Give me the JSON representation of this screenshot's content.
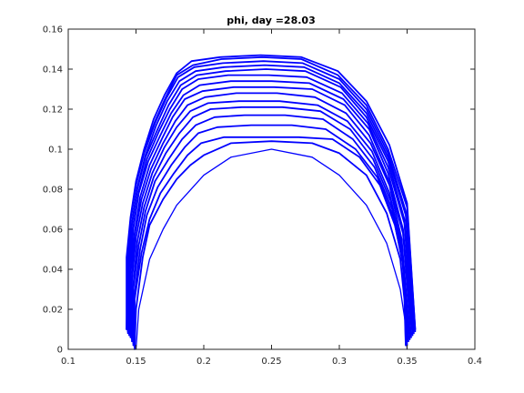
{
  "chart_data": {
    "type": "line",
    "title": "phi, day =28.03",
    "xlabel": "",
    "ylabel": "",
    "xlim": [
      0.1,
      0.4
    ],
    "ylim": [
      0,
      0.16
    ],
    "xticks": [
      0.1,
      0.15,
      0.2,
      0.25,
      0.3,
      0.35,
      0.4
    ],
    "xtick_labels": [
      "0.1",
      "0.15",
      "0.2",
      "0.25",
      "0.3",
      "0.35",
      "0.4"
    ],
    "yticks": [
      0,
      0.02,
      0.04,
      0.06,
      0.08,
      0.1,
      0.12,
      0.14,
      0.16
    ],
    "ytick_labels": [
      "0",
      "0.02",
      "0.04",
      "0.06",
      "0.08",
      "0.1",
      "0.12",
      "0.14",
      "0.16"
    ],
    "grid": false,
    "legend": false,
    "line_color": "#0000ff",
    "series": [
      {
        "x": [
          0.15,
          0.152,
          0.16,
          0.17,
          0.18,
          0.2,
          0.22,
          0.25,
          0.28,
          0.3,
          0.32,
          0.335,
          0.345,
          0.349,
          0.35
        ],
        "y": [
          0.0,
          0.02,
          0.045,
          0.06,
          0.072,
          0.087,
          0.096,
          0.1,
          0.096,
          0.087,
          0.072,
          0.053,
          0.03,
          0.012,
          0.0
        ]
      },
      {
        "x": [
          0.149,
          0.15,
          0.155,
          0.16,
          0.17,
          0.18,
          0.19,
          0.2,
          0.22,
          0.25,
          0.28,
          0.3,
          0.32,
          0.335,
          0.345,
          0.348,
          0.349
        ],
        "y": [
          0.0,
          0.02,
          0.046,
          0.062,
          0.075,
          0.085,
          0.092,
          0.097,
          0.103,
          0.104,
          0.103,
          0.098,
          0.087,
          0.068,
          0.045,
          0.025,
          0.002
        ]
      },
      {
        "x": [
          0.149,
          0.149,
          0.154,
          0.16,
          0.168,
          0.178,
          0.188,
          0.198,
          0.215,
          0.24,
          0.27,
          0.295,
          0.315,
          0.33,
          0.341,
          0.348,
          0.349
        ],
        "y": [
          0.001,
          0.025,
          0.048,
          0.065,
          0.078,
          0.088,
          0.097,
          0.103,
          0.106,
          0.106,
          0.106,
          0.105,
          0.096,
          0.082,
          0.062,
          0.04,
          0.003
        ]
      },
      {
        "x": [
          0.148,
          0.149,
          0.153,
          0.158,
          0.166,
          0.176,
          0.186,
          0.196,
          0.21,
          0.235,
          0.265,
          0.29,
          0.312,
          0.328,
          0.34,
          0.347,
          0.35
        ],
        "y": [
          0.002,
          0.028,
          0.05,
          0.067,
          0.081,
          0.092,
          0.101,
          0.108,
          0.111,
          0.112,
          0.112,
          0.11,
          0.1,
          0.086,
          0.066,
          0.042,
          0.002
        ]
      },
      {
        "x": [
          0.148,
          0.148,
          0.152,
          0.157,
          0.164,
          0.174,
          0.184,
          0.194,
          0.208,
          0.23,
          0.26,
          0.288,
          0.31,
          0.326,
          0.339,
          0.347,
          0.35
        ],
        "y": [
          0.003,
          0.03,
          0.052,
          0.069,
          0.084,
          0.095,
          0.105,
          0.112,
          0.116,
          0.117,
          0.117,
          0.115,
          0.105,
          0.091,
          0.07,
          0.046,
          0.004
        ]
      },
      {
        "x": [
          0.147,
          0.148,
          0.151,
          0.156,
          0.163,
          0.172,
          0.182,
          0.192,
          0.205,
          0.228,
          0.258,
          0.286,
          0.308,
          0.325,
          0.338,
          0.346,
          0.351
        ],
        "y": [
          0.004,
          0.032,
          0.054,
          0.071,
          0.086,
          0.098,
          0.108,
          0.116,
          0.12,
          0.121,
          0.121,
          0.119,
          0.11,
          0.095,
          0.074,
          0.049,
          0.004
        ]
      },
      {
        "x": [
          0.147,
          0.147,
          0.15,
          0.155,
          0.162,
          0.171,
          0.18,
          0.19,
          0.203,
          0.226,
          0.256,
          0.284,
          0.306,
          0.324,
          0.337,
          0.346,
          0.352
        ],
        "y": [
          0.005,
          0.034,
          0.056,
          0.073,
          0.088,
          0.101,
          0.111,
          0.119,
          0.123,
          0.124,
          0.124,
          0.122,
          0.114,
          0.099,
          0.078,
          0.052,
          0.005
        ]
      },
      {
        "x": [
          0.146,
          0.147,
          0.149,
          0.154,
          0.161,
          0.17,
          0.179,
          0.188,
          0.201,
          0.224,
          0.254,
          0.282,
          0.305,
          0.323,
          0.337,
          0.346,
          0.352
        ],
        "y": [
          0.006,
          0.036,
          0.057,
          0.075,
          0.09,
          0.103,
          0.114,
          0.122,
          0.126,
          0.128,
          0.128,
          0.126,
          0.118,
          0.103,
          0.082,
          0.055,
          0.006
        ]
      },
      {
        "x": [
          0.146,
          0.146,
          0.149,
          0.153,
          0.16,
          0.169,
          0.177,
          0.186,
          0.199,
          0.222,
          0.252,
          0.28,
          0.304,
          0.322,
          0.336,
          0.347,
          0.353
        ],
        "y": [
          0.006,
          0.038,
          0.058,
          0.076,
          0.092,
          0.105,
          0.116,
          0.125,
          0.129,
          0.131,
          0.131,
          0.13,
          0.122,
          0.107,
          0.085,
          0.058,
          0.006
        ]
      },
      {
        "x": [
          0.145,
          0.146,
          0.148,
          0.152,
          0.159,
          0.168,
          0.176,
          0.185,
          0.197,
          0.22,
          0.25,
          0.278,
          0.303,
          0.322,
          0.336,
          0.347,
          0.354
        ],
        "y": [
          0.007,
          0.04,
          0.06,
          0.078,
          0.094,
          0.107,
          0.118,
          0.127,
          0.132,
          0.134,
          0.134,
          0.133,
          0.125,
          0.11,
          0.088,
          0.06,
          0.007
        ]
      },
      {
        "x": [
          0.145,
          0.145,
          0.148,
          0.152,
          0.158,
          0.167,
          0.175,
          0.184,
          0.196,
          0.218,
          0.248,
          0.276,
          0.302,
          0.321,
          0.336,
          0.348,
          0.354
        ],
        "y": [
          0.008,
          0.041,
          0.061,
          0.079,
          0.095,
          0.109,
          0.12,
          0.13,
          0.135,
          0.137,
          0.137,
          0.136,
          0.128,
          0.113,
          0.091,
          0.063,
          0.008
        ]
      },
      {
        "x": [
          0.144,
          0.145,
          0.147,
          0.151,
          0.157,
          0.166,
          0.174,
          0.183,
          0.195,
          0.216,
          0.246,
          0.275,
          0.301,
          0.32,
          0.336,
          0.348,
          0.355
        ],
        "y": [
          0.008,
          0.042,
          0.062,
          0.08,
          0.096,
          0.11,
          0.122,
          0.132,
          0.137,
          0.139,
          0.14,
          0.139,
          0.131,
          0.116,
          0.094,
          0.065,
          0.008
        ]
      },
      {
        "x": [
          0.144,
          0.144,
          0.147,
          0.151,
          0.157,
          0.165,
          0.173,
          0.182,
          0.194,
          0.215,
          0.245,
          0.274,
          0.3,
          0.32,
          0.336,
          0.349,
          0.355
        ],
        "y": [
          0.009,
          0.043,
          0.063,
          0.081,
          0.097,
          0.112,
          0.124,
          0.134,
          0.139,
          0.141,
          0.142,
          0.141,
          0.133,
          0.118,
          0.096,
          0.067,
          0.009
        ]
      },
      {
        "x": [
          0.144,
          0.144,
          0.146,
          0.15,
          0.156,
          0.164,
          0.172,
          0.181,
          0.193,
          0.214,
          0.244,
          0.273,
          0.3,
          0.32,
          0.336,
          0.349,
          0.356
        ],
        "y": [
          0.009,
          0.044,
          0.064,
          0.082,
          0.098,
          0.113,
          0.125,
          0.136,
          0.141,
          0.143,
          0.144,
          0.143,
          0.135,
          0.12,
          0.098,
          0.069,
          0.009
        ]
      },
      {
        "x": [
          0.143,
          0.144,
          0.146,
          0.15,
          0.156,
          0.164,
          0.172,
          0.18,
          0.192,
          0.213,
          0.243,
          0.272,
          0.299,
          0.32,
          0.336,
          0.35,
          0.356
        ],
        "y": [
          0.01,
          0.045,
          0.065,
          0.083,
          0.099,
          0.114,
          0.126,
          0.137,
          0.142,
          0.145,
          0.146,
          0.145,
          0.137,
          0.122,
          0.1,
          0.071,
          0.01
        ]
      },
      {
        "x": [
          0.143,
          0.143,
          0.146,
          0.15,
          0.156,
          0.163,
          0.171,
          0.18,
          0.191,
          0.212,
          0.242,
          0.272,
          0.299,
          0.32,
          0.337,
          0.35,
          0.356
        ],
        "y": [
          0.01,
          0.046,
          0.066,
          0.084,
          0.1,
          0.115,
          0.127,
          0.138,
          0.144,
          0.146,
          0.147,
          0.146,
          0.139,
          0.124,
          0.102,
          0.073,
          0.01
        ]
      }
    ]
  }
}
